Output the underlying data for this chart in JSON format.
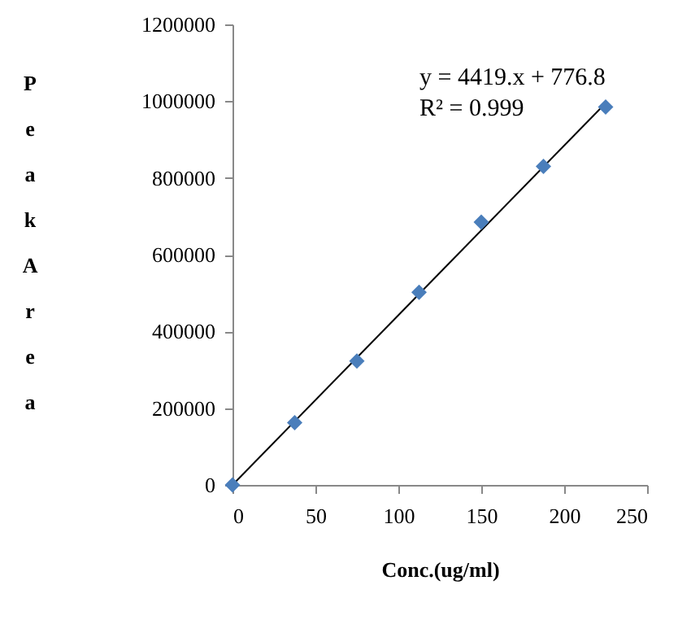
{
  "chart_data": {
    "type": "scatter",
    "xlabel": "Conc.(ug/ml)",
    "ylabel": "Peak Area",
    "x": [
      0,
      37.5,
      75,
      112.5,
      150,
      187.5,
      225
    ],
    "series": [
      {
        "type": "scatter",
        "color": "#4a7ebb",
        "marker": "diamond",
        "values": [
          0,
          162000,
          323000,
          502000,
          685000,
          830000,
          985000
        ]
      },
      {
        "type": "line",
        "color": "#000000",
        "x": [
          0,
          225
        ],
        "values": [
          0,
          995000
        ]
      }
    ],
    "xlim": [
      0,
      250
    ],
    "xticks": [
      0,
      50,
      100,
      150,
      200,
      250
    ],
    "ylim": [
      0,
      1200000
    ],
    "yticks": [
      0,
      200000,
      400000,
      600000,
      800000,
      1000000,
      1200000
    ],
    "grid": false,
    "annotations": [
      "y = 4419.x + 776.8",
      "R² = 0.999"
    ]
  }
}
